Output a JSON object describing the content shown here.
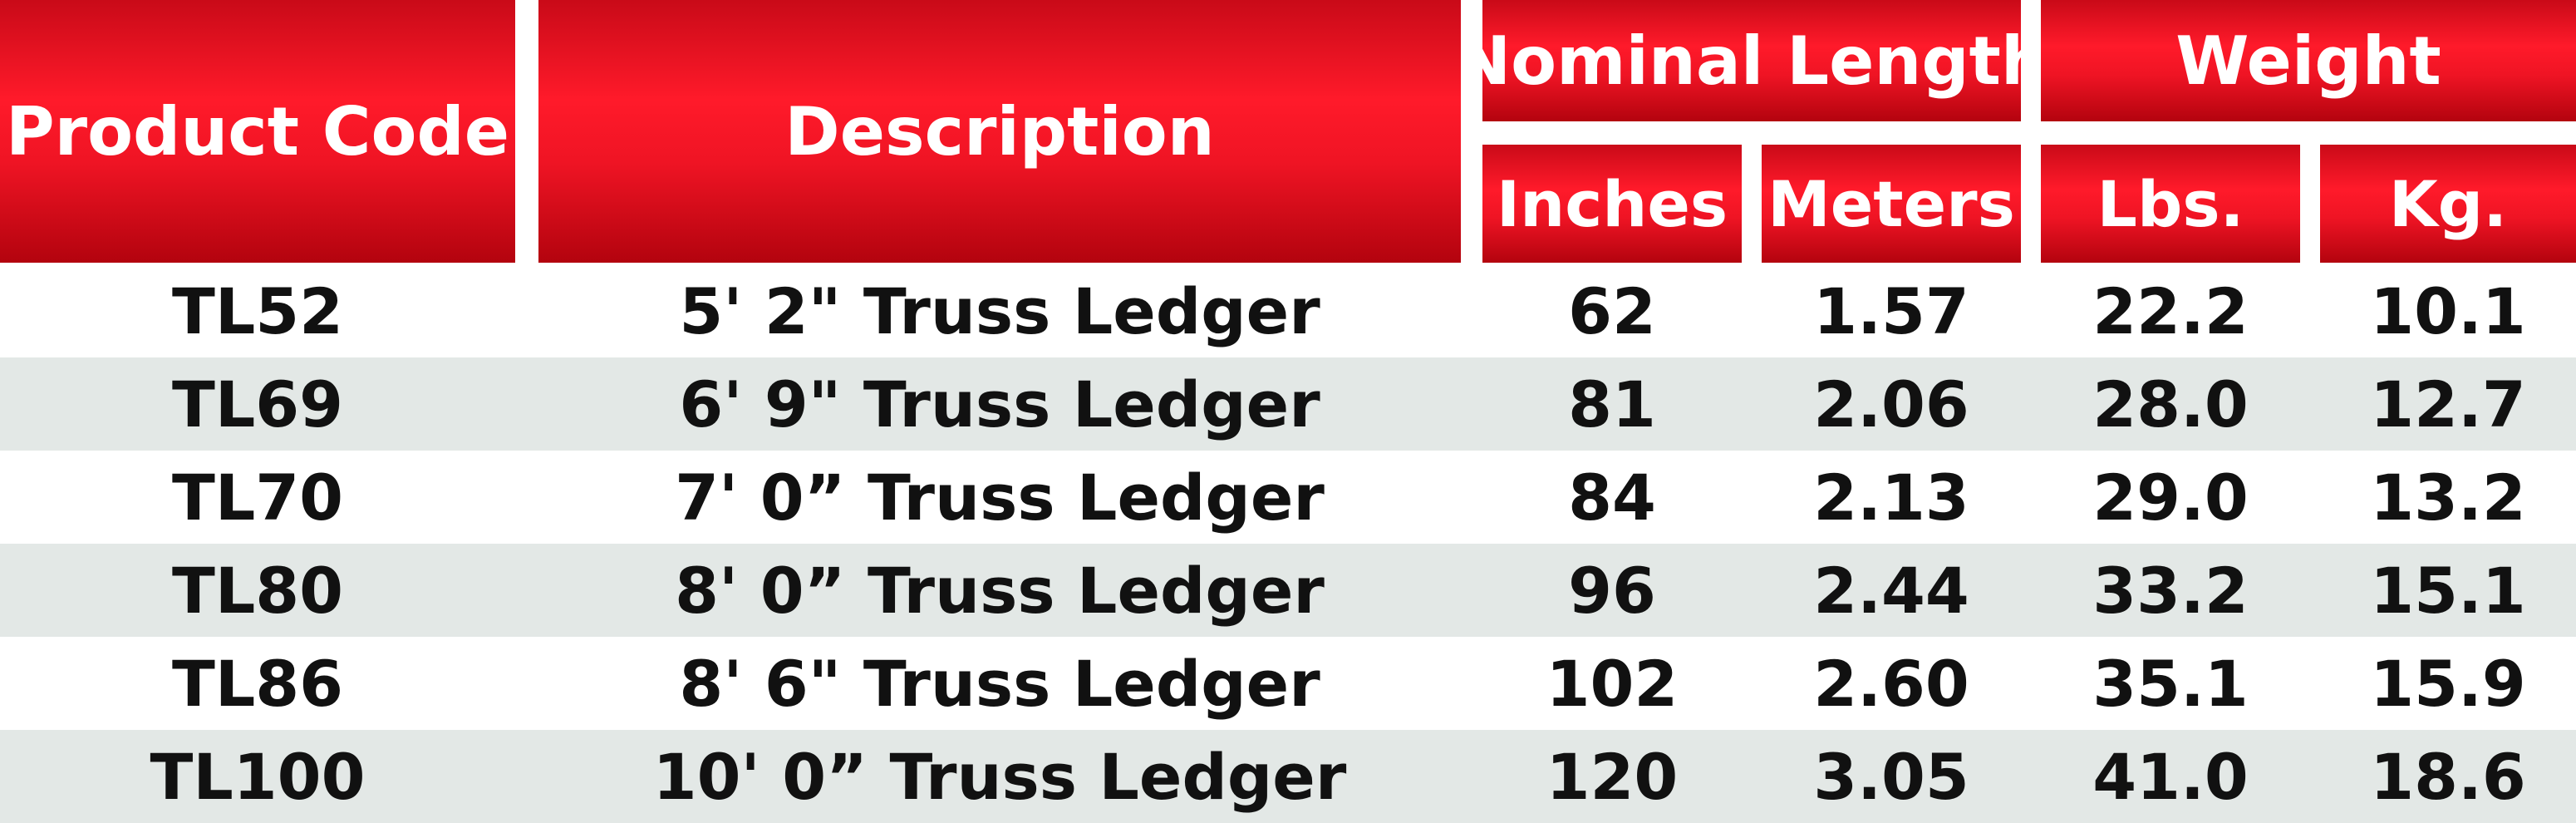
{
  "colors": {
    "header_red": "#ed1c24",
    "header_text": "#ffffff",
    "row_shade": "#e3e8e6",
    "row_plain": "#ffffff",
    "body_text": "#111111"
  },
  "header": {
    "product_code": "Product Code",
    "description": "Description",
    "nominal_length": "Nominal Length",
    "weight": "Weight",
    "inches": "Inches",
    "meters": "Meters",
    "lbs": "Lbs.",
    "kg": "Kg."
  },
  "rows": [
    {
      "code": "TL52",
      "description": "5' 2\" Truss Ledger",
      "inches": "62",
      "meters": "1.57",
      "lbs": "22.2",
      "kg": "10.1"
    },
    {
      "code": "TL69",
      "description": "6' 9\" Truss Ledger",
      "inches": "81",
      "meters": "2.06",
      "lbs": "28.0",
      "kg": "12.7"
    },
    {
      "code": "TL70",
      "description": "7' 0” Truss Ledger",
      "inches": "84",
      "meters": "2.13",
      "lbs": "29.0",
      "kg": "13.2"
    },
    {
      "code": "TL80",
      "description": "8' 0” Truss Ledger",
      "inches": "96",
      "meters": "2.44",
      "lbs": "33.2",
      "kg": "15.1"
    },
    {
      "code": "TL86",
      "description": "8' 6\" Truss Ledger",
      "inches": "102",
      "meters": "2.60",
      "lbs": "35.1",
      "kg": "15.9"
    },
    {
      "code": "TL100",
      "description": "10' 0” Truss Ledger",
      "inches": "120",
      "meters": "3.05",
      "lbs": "41.0",
      "kg": "18.6"
    }
  ]
}
